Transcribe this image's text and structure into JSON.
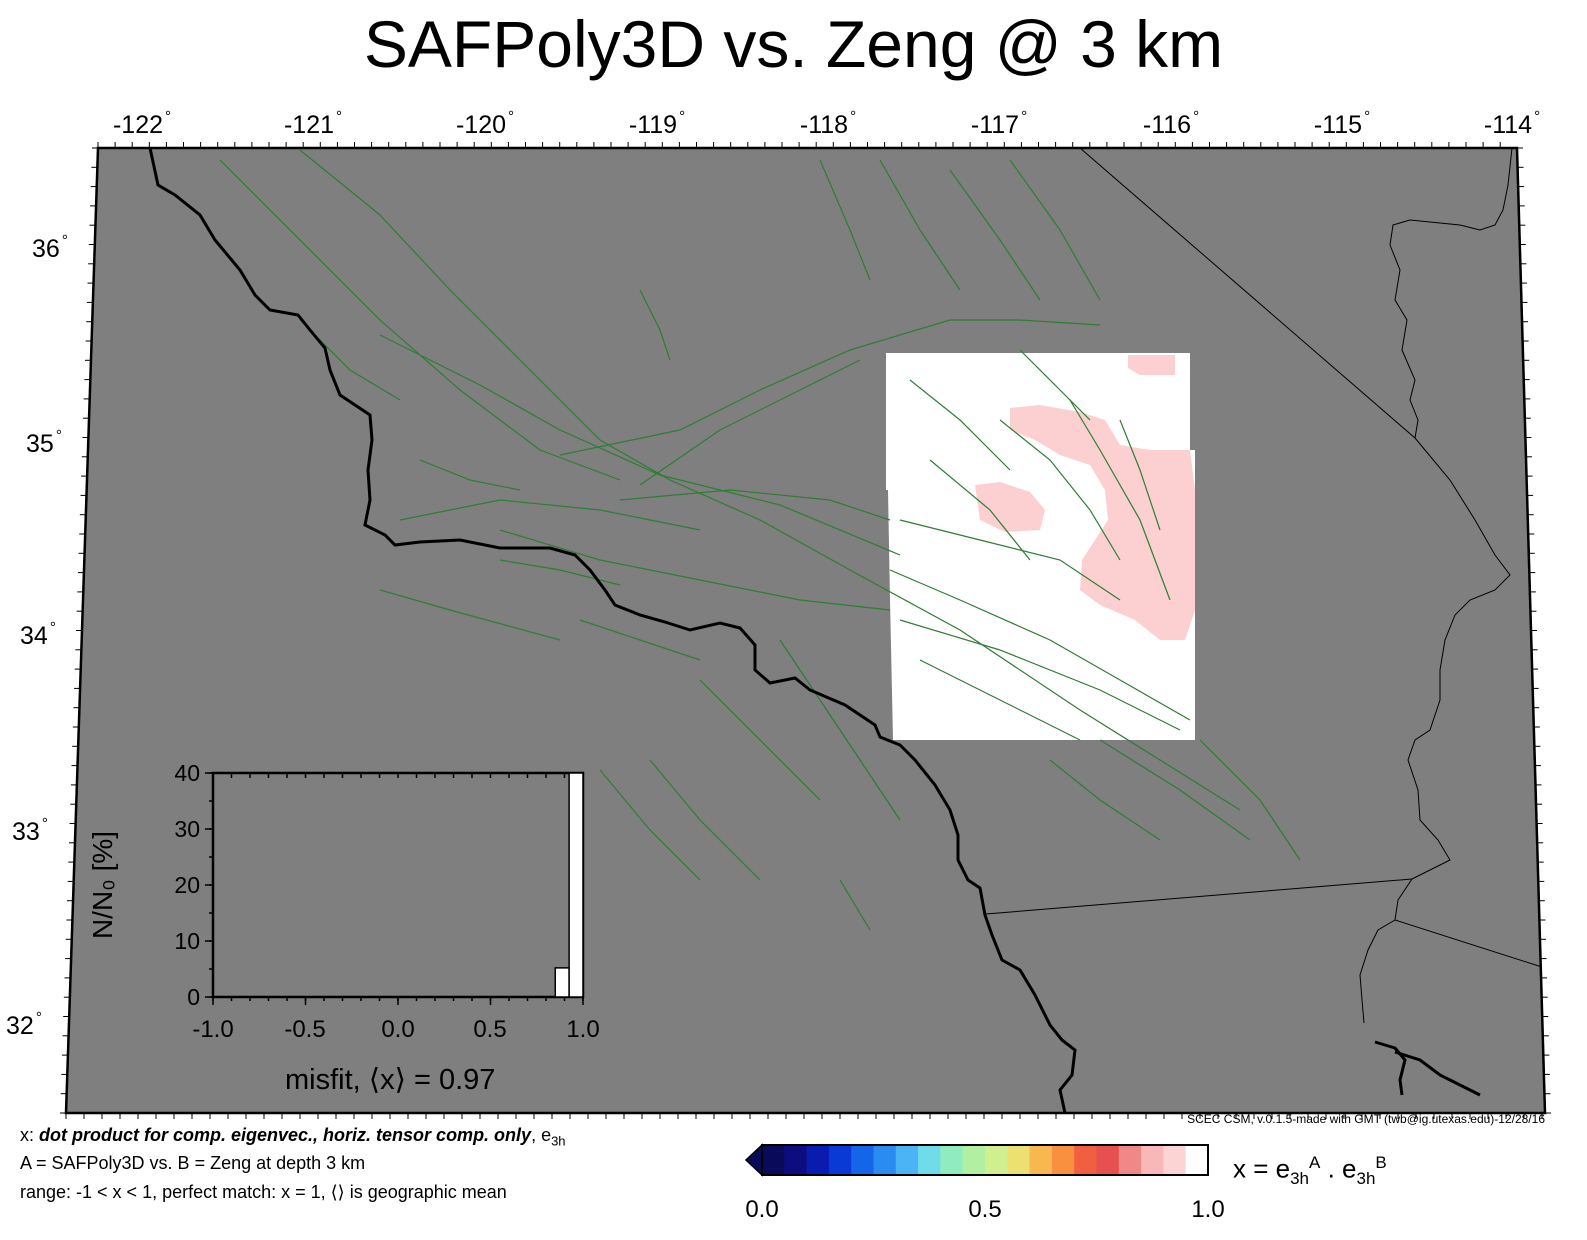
{
  "title": "SAFPoly3D vs. Zeng @ 3 km",
  "map": {
    "lon_labels": [
      "-122",
      "-121",
      "-120",
      "-119",
      "-118",
      "-117",
      "-116",
      "-115",
      "-114"
    ],
    "lat_labels": [
      "36",
      "35",
      "34",
      "33",
      "32"
    ],
    "degree_symbol": "°",
    "colors": {
      "background": "#7f7f7f",
      "faults": "#2e7d32",
      "coastline": "#000000",
      "data_region": "#ffffff",
      "high_misfit": "#fccfd0"
    }
  },
  "histogram": {
    "y_title": "N/N₀ [%]",
    "y_ticks": [
      "0",
      "10",
      "20",
      "30",
      "40"
    ],
    "x_ticks": [
      "-1.0",
      "-0.5",
      "0.0",
      "0.5",
      "1.0"
    ],
    "bins": [
      {
        "from": 0.85,
        "to": 0.925,
        "percent": 5.2
      },
      {
        "from": 0.925,
        "to": 1.0,
        "percent": 40
      }
    ],
    "misfit_text": "misfit, ⟨x⟩ = 0.97"
  },
  "credit": "SCEC CSM, v.0.1.5-made with GMT (twb@ig.utexas.edu)-12/28/16",
  "notes": {
    "line1_prefix": "x: ",
    "line1_bold": "dot product for comp. eigenvec., horiz. tensor comp. only",
    "line1_suffix": ", e",
    "line1_sub": "3h",
    "line2": "A = SAFPoly3D vs.  B = Zeng at depth 3 km",
    "line3": "range: -1 < x < 1, perfect match: x = 1, ⟨⟩ is geographic mean"
  },
  "colorbar": {
    "labels": [
      "0.0",
      "0.5",
      "1.0"
    ],
    "colors": [
      "#0a0a5a",
      "#0d0d80",
      "#0a1cb0",
      "#0a3ad6",
      "#1565e8",
      "#2a8cf0",
      "#4ab4f4",
      "#70dce8",
      "#90ecc0",
      "#b0f0a0",
      "#d0f090",
      "#ece070",
      "#f8b850",
      "#f89040",
      "#f06040",
      "#e85050",
      "#f08888",
      "#f8b8b8",
      "#fcd4d4",
      "#ffffff"
    ],
    "formula_x": "x = e",
    "formula_sub1": "3h",
    "formula_sup1": "A",
    "formula_mid": " . e",
    "formula_sub2": "3h",
    "formula_sup2": "B"
  }
}
